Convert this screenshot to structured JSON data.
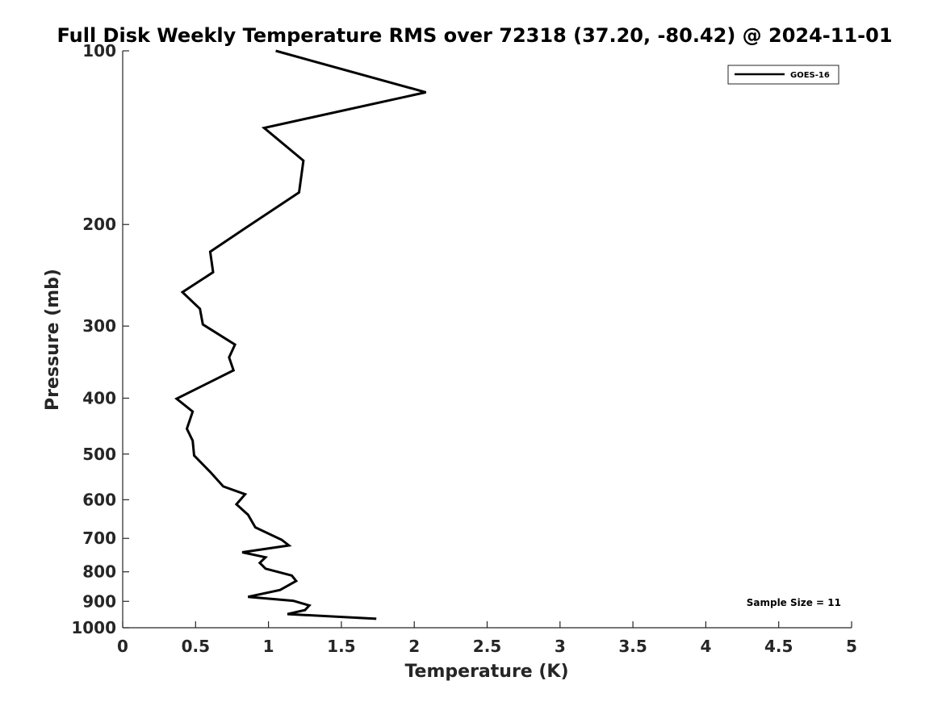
{
  "chart_data": {
    "type": "line",
    "title": "Full Disk Weekly Temperature RMS over 72318 (37.20, -80.42) @ 2024-11-01",
    "xlabel": "Temperature (K)",
    "ylabel": "Pressure (mb)",
    "xlim": [
      0,
      5
    ],
    "ylim": [
      100,
      1000
    ],
    "y_scale": "log",
    "y_reversed": true,
    "xticks": [
      "0",
      "0.5",
      "1",
      "1.5",
      "2",
      "2.5",
      "3",
      "3.5",
      "4",
      "4.5",
      "5"
    ],
    "yticks": [
      "100",
      "200",
      "300",
      "400",
      "500",
      "600",
      "700",
      "800",
      "900",
      "1000"
    ],
    "grid": false,
    "legend_position": "top-right",
    "annotation": "Sample Size = 11",
    "series": [
      {
        "name": "GOES-16",
        "color": "#000000",
        "points": [
          [
            1.05,
            100
          ],
          [
            2.08,
            118
          ],
          [
            0.97,
            136
          ],
          [
            1.24,
            155
          ],
          [
            1.21,
            176
          ],
          [
            0.84,
            203
          ],
          [
            0.6,
            223
          ],
          [
            0.62,
            242
          ],
          [
            0.41,
            262
          ],
          [
            0.53,
            280
          ],
          [
            0.55,
            298
          ],
          [
            0.77,
            323
          ],
          [
            0.73,
            340
          ],
          [
            0.76,
            358
          ],
          [
            0.37,
            401
          ],
          [
            0.48,
            422
          ],
          [
            0.44,
            452
          ],
          [
            0.48,
            474
          ],
          [
            0.49,
            503
          ],
          [
            0.6,
            537
          ],
          [
            0.69,
            569
          ],
          [
            0.84,
            587
          ],
          [
            0.78,
            611
          ],
          [
            0.86,
            637
          ],
          [
            0.91,
            670
          ],
          [
            1.09,
            704
          ],
          [
            1.14,
            720
          ],
          [
            0.82,
            740
          ],
          [
            0.98,
            755
          ],
          [
            0.94,
            772
          ],
          [
            0.98,
            790
          ],
          [
            1.16,
            812
          ],
          [
            1.19,
            830
          ],
          [
            1.08,
            860
          ],
          [
            0.86,
            884
          ],
          [
            1.17,
            898
          ],
          [
            1.28,
            915
          ],
          [
            1.25,
            932
          ],
          [
            1.13,
            947
          ],
          [
            1.74,
            965
          ]
        ]
      }
    ]
  }
}
